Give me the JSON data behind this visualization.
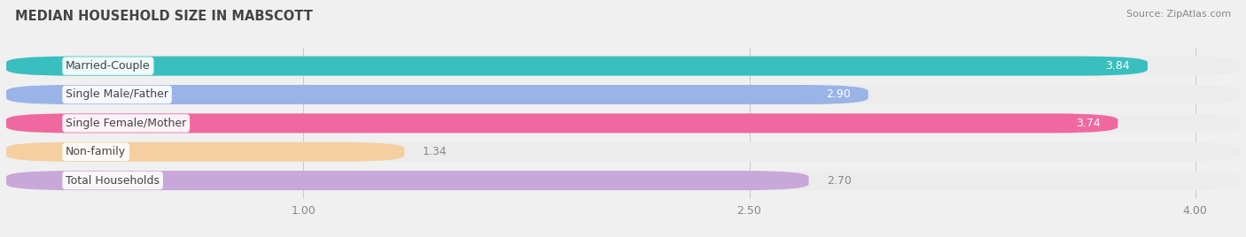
{
  "title": "MEDIAN HOUSEHOLD SIZE IN MABSCOTT",
  "source": "Source: ZipAtlas.com",
  "categories": [
    "Married-Couple",
    "Single Male/Father",
    "Single Female/Mother",
    "Non-family",
    "Total Households"
  ],
  "values": [
    3.84,
    2.9,
    3.74,
    1.34,
    2.7
  ],
  "bar_colors": [
    "#3abfbf",
    "#9ab4e8",
    "#f068a0",
    "#f5cfa0",
    "#c8a8d8"
  ],
  "bar_bg_colors": [
    "#ececec",
    "#ececec",
    "#ececec",
    "#ececec",
    "#ececec"
  ],
  "label_dot_colors": [
    "#3abfbf",
    "#9ab4e8",
    "#f068a0",
    "#f5cfa0",
    "#c8a8d8"
  ],
  "xlim_min": 0.0,
  "xlim_max": 4.15,
  "xticks": [
    1.0,
    2.5,
    4.0
  ],
  "background_color": "#f0f0f0",
  "bar_height": 0.68,
  "title_color": "#444444",
  "source_color": "#888888",
  "tick_color": "#888888",
  "label_text_color": "#444444",
  "value_inside_color": "white",
  "nonfamily_value_color": "#888888",
  "grid_color": "#cccccc"
}
